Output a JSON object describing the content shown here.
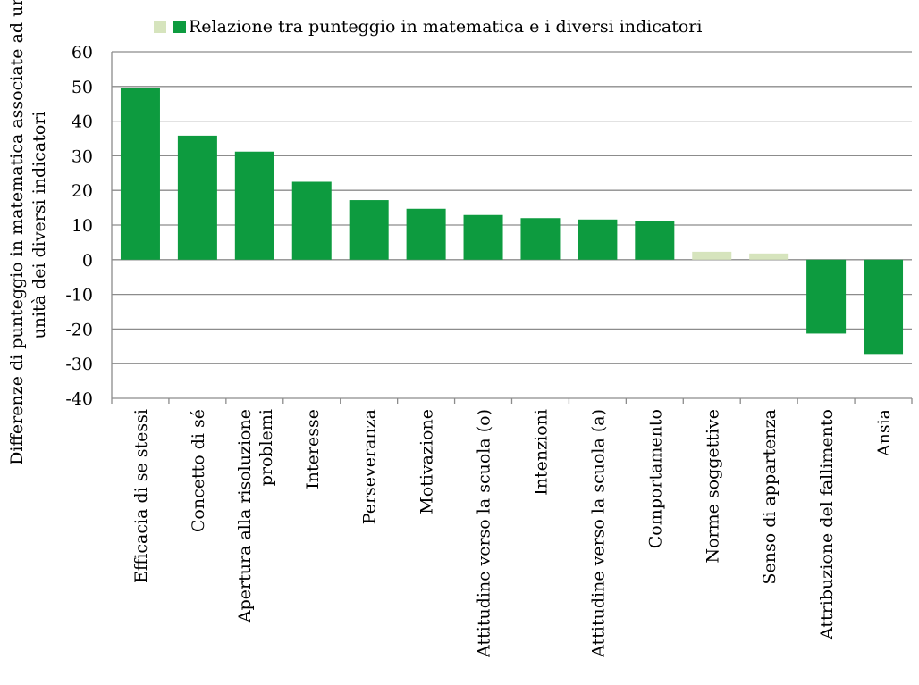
{
  "chart_data": {
    "type": "bar",
    "title": "",
    "ylabel": "Differenze di punteggio in matematica associate ad una unità dei diversi indicatori",
    "ylabel_lines": [
      "Differenze di punteggio in matematica associate ad una",
      "unità dei diversi indicatori"
    ],
    "xlabel": "",
    "ylim": [
      -40,
      60
    ],
    "yticks": [
      60,
      50,
      40,
      30,
      20,
      10,
      0,
      -10,
      -20,
      -30,
      -40
    ],
    "grid": true,
    "legend_position": "top",
    "categories": [
      "Efficacia di se stessi",
      "Concetto di sé",
      "Apertura alla risoluzione problemi",
      "Interesse",
      "Perseveranza",
      "Motivazione",
      "Attitudine verso la scuola (o)",
      "Intenzioni",
      "Attitudine verso la scuola (a)",
      "Comportamento",
      "Norme soggettive",
      "Senso di appartenza",
      "Attribuzione del fallimento",
      "Ansia"
    ],
    "category_label_lines": [
      [
        "Efficacia di se stessi"
      ],
      [
        "Concetto di sé"
      ],
      [
        "Apertura alla risoluzione",
        "problemi"
      ],
      [
        "Interesse"
      ],
      [
        "Perseveranza"
      ],
      [
        "Motivazione"
      ],
      [
        "Attitudine verso la scuola (o)"
      ],
      [
        "Intenzioni"
      ],
      [
        "Attitudine verso la scuola (a)"
      ],
      [
        "Comportamento"
      ],
      [
        "Norme soggettive"
      ],
      [
        "Senso di appartenza"
      ],
      [
        "Attribuzione del fallimento"
      ],
      [
        "Ansia"
      ]
    ],
    "series": [
      {
        "name": "Relazione tra punteggio in matematica e i diversi indicatori",
        "values": [
          49.5,
          35.8,
          31.2,
          22.5,
          17.2,
          14.7,
          12.9,
          12.0,
          11.6,
          11.2,
          2.3,
          1.8,
          -21.3,
          -27.2
        ],
        "significant": [
          true,
          true,
          true,
          true,
          true,
          true,
          true,
          true,
          true,
          true,
          false,
          false,
          true,
          true
        ]
      }
    ],
    "colors": {
      "significant": "#0d9b3f",
      "not_significant": "#d6e4bd",
      "gridline": "#8c8c8c"
    }
  }
}
